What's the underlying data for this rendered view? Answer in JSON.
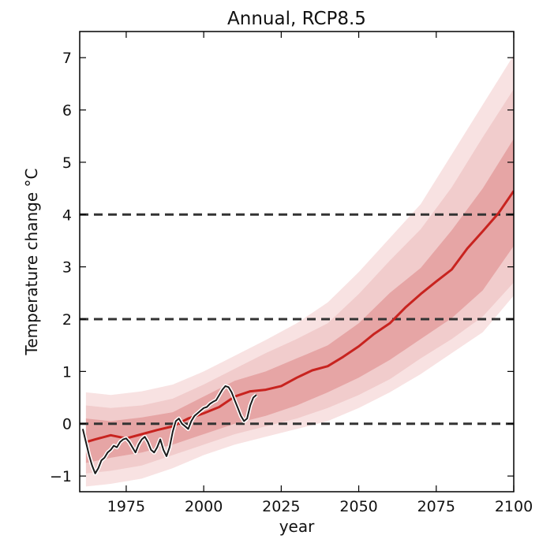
{
  "chart_data": {
    "type": "line",
    "title": "Annual, RCP8.5",
    "xlabel": "year",
    "ylabel": "Temperature change °C",
    "xlim": [
      1960,
      2100
    ],
    "ylim": [
      -1.3,
      7.5
    ],
    "x_ticks": [
      1975,
      2000,
      2025,
      2050,
      2075,
      2100
    ],
    "x_tick_labels": [
      "1975",
      "2000",
      "2025",
      "2050",
      "2075",
      "2100"
    ],
    "y_ticks": [
      -1,
      0,
      1,
      2,
      3,
      4,
      5,
      6,
      7
    ],
    "y_tick_labels": [
      "−1",
      "0",
      "1",
      "2",
      "3",
      "4",
      "5",
      "6",
      "7"
    ],
    "reference_lines": [
      0,
      2,
      4
    ],
    "grid": false,
    "colors": {
      "median": "#c8231f",
      "inner_band": "#e6a5a5",
      "middle_band": "#f1cccc",
      "outer_band": "#f8e2e2",
      "observed": "#1a1a1a",
      "reference": "#333333"
    },
    "series": [
      {
        "kind": "model-median",
        "x": [
          1962,
          1965,
          1970,
          1975,
          1980,
          1985,
          1990,
          1995,
          2000,
          2005,
          2010,
          2015,
          2020,
          2025,
          2030,
          2035,
          2040,
          2045,
          2050,
          2055,
          2060,
          2065,
          2070,
          2075,
          2080,
          2085,
          2090,
          2095,
          2100
        ],
        "y": [
          -0.35,
          -0.3,
          -0.22,
          -0.28,
          -0.2,
          -0.12,
          -0.05,
          0.1,
          0.2,
          0.32,
          0.52,
          0.62,
          0.65,
          0.72,
          0.88,
          1.02,
          1.1,
          1.28,
          1.48,
          1.72,
          1.92,
          2.22,
          2.48,
          2.72,
          2.95,
          3.35,
          3.68,
          4.02,
          4.45
        ]
      },
      {
        "kind": "inner-band",
        "x": [
          1962,
          1970,
          1980,
          1990,
          2000,
          2010,
          2020,
          2030,
          2040,
          2050,
          2060,
          2070,
          2080,
          2090,
          2100
        ],
        "lower": [
          -0.75,
          -0.65,
          -0.55,
          -0.4,
          -0.2,
          0.0,
          0.15,
          0.35,
          0.6,
          0.88,
          1.22,
          1.62,
          2.02,
          2.55,
          3.4
        ],
        "upper": [
          0.1,
          0.05,
          0.12,
          0.22,
          0.52,
          0.82,
          1.0,
          1.25,
          1.5,
          1.92,
          2.5,
          2.98,
          3.7,
          4.5,
          5.45
        ]
      },
      {
        "kind": "middle-band",
        "x": [
          1962,
          1970,
          1980,
          1990,
          2000,
          2010,
          2020,
          2030,
          2040,
          2050,
          2060,
          2070,
          2080,
          2090,
          2100
        ],
        "lower": [
          -0.95,
          -0.9,
          -0.8,
          -0.6,
          -0.4,
          -0.2,
          -0.05,
          0.1,
          0.3,
          0.55,
          0.85,
          1.25,
          1.62,
          2.05,
          2.7
        ],
        "upper": [
          0.35,
          0.3,
          0.35,
          0.48,
          0.75,
          1.05,
          1.35,
          1.62,
          1.92,
          2.48,
          3.12,
          3.72,
          4.52,
          5.48,
          6.4
        ]
      },
      {
        "kind": "outer-band",
        "x": [
          1962,
          1970,
          1980,
          1990,
          2000,
          2010,
          2020,
          2030,
          2040,
          2050,
          2060,
          2070,
          2080,
          2090,
          2100
        ],
        "lower": [
          -1.2,
          -1.15,
          -1.05,
          -0.85,
          -0.6,
          -0.4,
          -0.25,
          -0.1,
          0.05,
          0.3,
          0.6,
          0.95,
          1.35,
          1.75,
          2.45
        ],
        "upper": [
          0.6,
          0.55,
          0.62,
          0.75,
          1.0,
          1.3,
          1.6,
          1.92,
          2.32,
          2.9,
          3.55,
          4.2,
          5.15,
          6.1,
          7.05
        ]
      },
      {
        "kind": "observed",
        "x": [
          1961,
          1962,
          1963,
          1964,
          1965,
          1966,
          1967,
          1968,
          1969,
          1970,
          1971,
          1972,
          1973,
          1974,
          1975,
          1976,
          1977,
          1978,
          1979,
          1980,
          1981,
          1982,
          1983,
          1984,
          1985,
          1986,
          1987,
          1988,
          1989,
          1990,
          1991,
          1992,
          1993,
          1994,
          1995,
          1996,
          1997,
          1998,
          1999,
          2000,
          2001,
          2002,
          2003,
          2004,
          2005,
          2006,
          2007,
          2008,
          2009,
          2010,
          2011,
          2012,
          2013,
          2014,
          2015,
          2016,
          2017
        ],
        "y": [
          -0.1,
          -0.35,
          -0.6,
          -0.8,
          -0.95,
          -0.85,
          -0.7,
          -0.65,
          -0.55,
          -0.5,
          -0.42,
          -0.45,
          -0.35,
          -0.3,
          -0.28,
          -0.35,
          -0.45,
          -0.55,
          -0.4,
          -0.3,
          -0.25,
          -0.35,
          -0.5,
          -0.55,
          -0.45,
          -0.3,
          -0.5,
          -0.62,
          -0.45,
          -0.15,
          0.05,
          0.1,
          0.0,
          -0.05,
          -0.1,
          0.05,
          0.15,
          0.2,
          0.25,
          0.3,
          0.32,
          0.38,
          0.42,
          0.45,
          0.55,
          0.65,
          0.72,
          0.7,
          0.6,
          0.45,
          0.3,
          0.15,
          0.05,
          0.1,
          0.35,
          0.5,
          0.55
        ]
      }
    ]
  }
}
